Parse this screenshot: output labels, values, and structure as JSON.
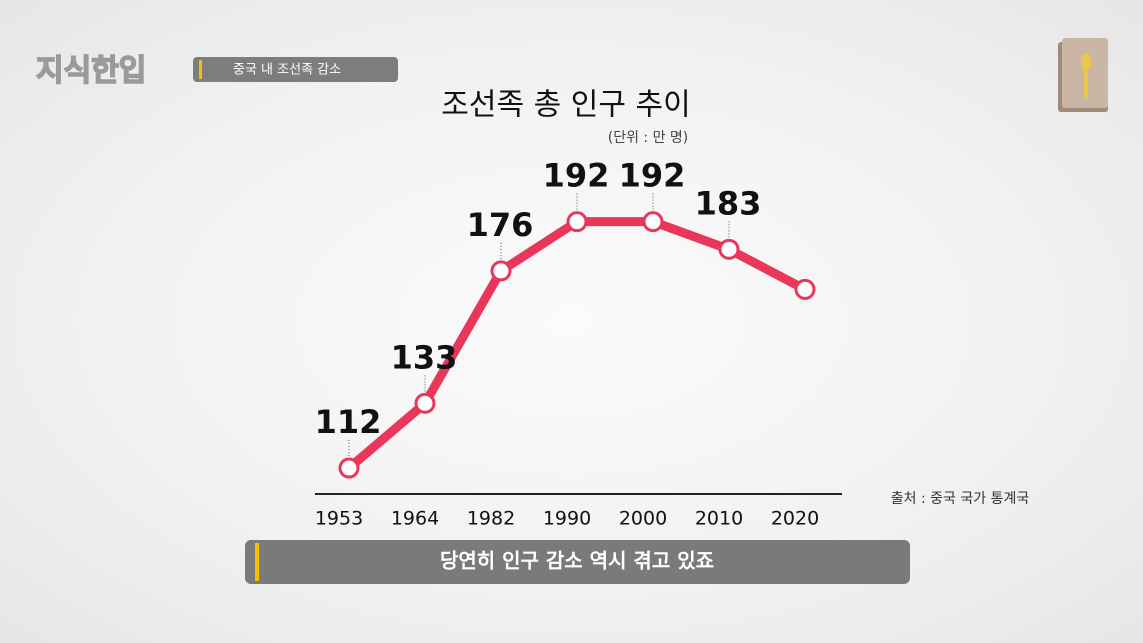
{
  "logo": "지식한입",
  "header_tag": "중국 내 조선족 감소",
  "caption": "당연히 인구 감소 역시 겪고 있죠",
  "chart_data": {
    "type": "line",
    "title": "조선족 총 인구 추이",
    "subtitle": "(단위 : 만 명)",
    "source": "출처 : 중국 국가 통계국",
    "categories": [
      "1953",
      "1964",
      "1982",
      "1990",
      "2000",
      "2010",
      "2020"
    ],
    "values": [
      112,
      133,
      176,
      192,
      192,
      183,
      170
    ],
    "value_labels": [
      112,
      133,
      176,
      192,
      192,
      183,
      null
    ],
    "color": "#e8375a",
    "ylim": [
      100,
      200
    ]
  }
}
